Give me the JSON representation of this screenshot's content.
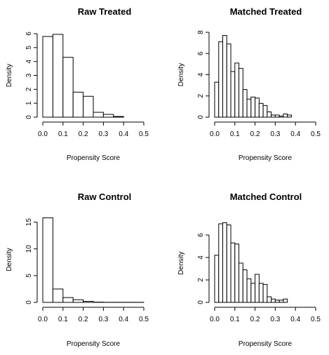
{
  "chart_data": [
    {
      "type": "bar",
      "title": "Raw Treated",
      "xlabel": "Propensity Score",
      "ylabel": "Density",
      "bin_width": 0.05,
      "bin_starts": [
        0.0,
        0.05,
        0.1,
        0.15,
        0.2,
        0.25,
        0.3,
        0.35
      ],
      "values": [
        5.8,
        5.95,
        4.3,
        1.8,
        1.5,
        0.35,
        0.2,
        0.05
      ],
      "xlim": [
        0,
        0.5
      ],
      "ylim": [
        0,
        6
      ],
      "xticks": [
        "0.0",
        "0.1",
        "0.2",
        "0.3",
        "0.4",
        "0.5"
      ],
      "yticks": [
        "0",
        "1",
        "2",
        "3",
        "4",
        "5",
        "6"
      ]
    },
    {
      "type": "bar",
      "title": "Matched Treated",
      "xlabel": "Propensity Score",
      "ylabel": "Density",
      "bin_width": 0.02,
      "bin_starts": [
        0.0,
        0.02,
        0.04,
        0.06,
        0.08,
        0.1,
        0.12,
        0.14,
        0.16,
        0.18,
        0.2,
        0.22,
        0.24,
        0.26,
        0.28,
        0.3,
        0.32,
        0.34,
        0.36
      ],
      "values": [
        3.3,
        7.1,
        7.7,
        6.9,
        4.3,
        5.1,
        4.6,
        2.6,
        1.7,
        1.9,
        1.8,
        1.3,
        1.1,
        0.5,
        0.2,
        0.2,
        0.1,
        0.3,
        0.2
      ],
      "xlim": [
        0,
        0.5
      ],
      "ylim": [
        0,
        8
      ],
      "xticks": [
        "0.0",
        "0.1",
        "0.2",
        "0.3",
        "0.4",
        "0.5"
      ],
      "yticks": [
        "0",
        "2",
        "4",
        "6",
        "8"
      ]
    },
    {
      "type": "bar",
      "title": "Raw Control",
      "xlabel": "Propensity Score",
      "ylabel": "Density",
      "bin_width": 0.05,
      "bin_starts": [
        0.0,
        0.05,
        0.1,
        0.15,
        0.2,
        0.25,
        0.3,
        0.35,
        0.4,
        0.45
      ],
      "values": [
        15.8,
        2.5,
        0.9,
        0.5,
        0.2,
        0.05,
        0.02,
        0.02,
        0.02,
        0.02
      ],
      "xlim": [
        0,
        0.5
      ],
      "ylim": [
        0,
        16
      ],
      "xticks": [
        "0.0",
        "0.1",
        "0.2",
        "0.3",
        "0.4",
        "0.5"
      ],
      "yticks": [
        "0",
        "5",
        "10",
        "15"
      ]
    },
    {
      "type": "bar",
      "title": "Matched Control",
      "xlabel": "Propensity Score",
      "ylabel": "Density",
      "bin_width": 0.02,
      "bin_starts": [
        0.0,
        0.02,
        0.04,
        0.06,
        0.08,
        0.1,
        0.12,
        0.14,
        0.16,
        0.18,
        0.2,
        0.22,
        0.24,
        0.26,
        0.28,
        0.3,
        0.32,
        0.34
      ],
      "values": [
        4.2,
        7.0,
        7.1,
        6.9,
        5.3,
        5.2,
        3.5,
        2.9,
        2.1,
        1.7,
        2.5,
        1.7,
        1.6,
        0.5,
        0.3,
        0.2,
        0.2,
        0.3
      ],
      "xlim": [
        0,
        0.5
      ],
      "ylim": [
        0,
        7
      ],
      "xticks": [
        "0.0",
        "0.1",
        "0.2",
        "0.3",
        "0.4",
        "0.5"
      ],
      "yticks": [
        "0",
        "2",
        "4",
        "6"
      ]
    }
  ]
}
